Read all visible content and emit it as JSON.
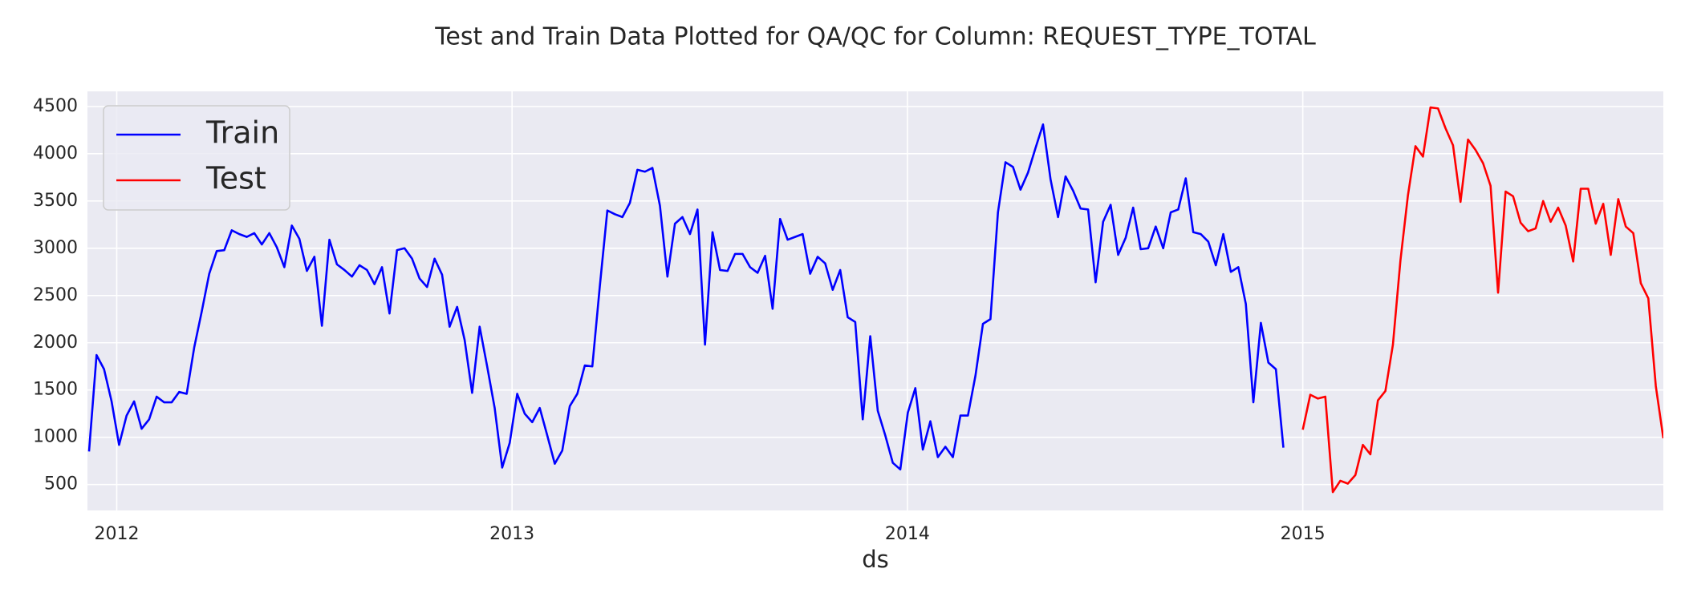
{
  "chart_data": {
    "type": "line",
    "title": "Test and Train Data Plotted for QA/QC for Column: REQUEST_TYPE_TOTAL",
    "x_label": "ds",
    "xlim": [
      2011.926,
      2015.912
    ],
    "xticks": [
      2012,
      2013,
      2014,
      2015
    ],
    "ylim": [
      226,
      4660
    ],
    "yticks": [
      500,
      1000,
      1500,
      2000,
      2500,
      3000,
      3500,
      4000,
      4500
    ],
    "grid": true,
    "legend": "upper left",
    "series": [
      {
        "name": "Train",
        "color": "#0000ff",
        "x": [
          2011.93,
          2011.949,
          2011.968,
          2011.987,
          2012.006,
          2012.025,
          2012.044,
          2012.063,
          2012.082,
          2012.101,
          2012.12,
          2012.139,
          2012.158,
          2012.177,
          2012.196,
          2012.215,
          2012.234,
          2012.253,
          2012.272,
          2012.291,
          2012.31,
          2012.329,
          2012.348,
          2012.367,
          2012.386,
          2012.405,
          2012.424,
          2012.443,
          2012.462,
          2012.481,
          2012.5,
          2012.519,
          2012.538,
          2012.557,
          2012.576,
          2012.595,
          2012.614,
          2012.633,
          2012.652,
          2012.671,
          2012.69,
          2012.709,
          2012.728,
          2012.747,
          2012.766,
          2012.785,
          2012.804,
          2012.823,
          2012.842,
          2012.861,
          2012.88,
          2012.899,
          2012.918,
          2012.937,
          2012.956,
          2012.975,
          2012.994,
          2013.013,
          2013.032,
          2013.051,
          2013.07,
          2013.089,
          2013.108,
          2013.127,
          2013.146,
          2013.165,
          2013.184,
          2013.203,
          2013.222,
          2013.241,
          2013.26,
          2013.279,
          2013.298,
          2013.317,
          2013.336,
          2013.355,
          2013.374,
          2013.393,
          2013.412,
          2013.431,
          2013.45,
          2013.469,
          2013.488,
          2013.507,
          2013.526,
          2013.545,
          2013.564,
          2013.583,
          2013.602,
          2013.621,
          2013.64,
          2013.659,
          2013.678,
          2013.697,
          2013.716,
          2013.735,
          2013.754,
          2013.773,
          2013.792,
          2013.811,
          2013.83,
          2013.849,
          2013.868,
          2013.887,
          2013.906,
          2013.925,
          2013.944,
          2013.963,
          2013.982,
          2014.001,
          2014.02,
          2014.039,
          2014.058,
          2014.077,
          2014.096,
          2014.115,
          2014.134,
          2014.153,
          2014.172,
          2014.191,
          2014.21,
          2014.229,
          2014.248,
          2014.267,
          2014.286,
          2014.305,
          2014.324,
          2014.343,
          2014.362,
          2014.381,
          2014.4,
          2014.419,
          2014.438,
          2014.457,
          2014.476,
          2014.495,
          2014.514,
          2014.533,
          2014.552,
          2014.571,
          2014.59,
          2014.609,
          2014.628,
          2014.647,
          2014.666,
          2014.685,
          2014.704,
          2014.723,
          2014.742,
          2014.761,
          2014.78,
          2014.799,
          2014.818,
          2014.837,
          2014.856,
          2014.875,
          2014.894,
          2014.913,
          2014.932,
          2014.951
        ],
        "values": [
          850,
          1870,
          1720,
          1380,
          920,
          1230,
          1380,
          1090,
          1190,
          1430,
          1370,
          1370,
          1480,
          1460,
          1950,
          2330,
          2730,
          2970,
          2980,
          3190,
          3150,
          3120,
          3160,
          3040,
          3160,
          3010,
          2800,
          3240,
          3100,
          2760,
          2910,
          2180,
          3090,
          2830,
          2770,
          2700,
          2820,
          2770,
          2620,
          2800,
          2310,
          2980,
          3000,
          2890,
          2680,
          2590,
          2890,
          2720,
          2170,
          2380,
          2030,
          1470,
          2170,
          1750,
          1310,
          680,
          940,
          1460,
          1250,
          1160,
          1310,
          1020,
          720,
          860,
          1330,
          1460,
          1760,
          1750,
          2600,
          3400,
          3360,
          3330,
          3480,
          3830,
          3810,
          3850,
          3450,
          2700,
          3260,
          3330,
          3150,
          3410,
          1980,
          3170,
          2770,
          2760,
          2940,
          2940,
          2800,
          2740,
          2920,
          2360,
          3310,
          3090,
          3120,
          3150,
          2730,
          2910,
          2840,
          2560,
          2770,
          2270,
          2220,
          1190,
          2070,
          1280,
          1020,
          730,
          660,
          1260,
          1520,
          870,
          1170,
          790,
          900,
          790,
          1230,
          1230,
          1650,
          2200,
          2250,
          3380,
          3910,
          3860,
          3620,
          3800,
          4060,
          4310,
          3730,
          3330,
          3760,
          3610,
          3420,
          3410,
          2640,
          3280,
          3460,
          2930,
          3110,
          3430,
          2990,
          3000,
          3230,
          3000,
          3380,
          3410,
          3740,
          3170,
          3150,
          3070,
          2820,
          3150,
          2750,
          2800,
          2410,
          1370,
          2210,
          1790,
          1720,
          890
        ]
      },
      {
        "name": "Test",
        "color": "#ff0000",
        "x": [
          2015,
          2015.019,
          2015.038,
          2015.057,
          2015.076,
          2015.095,
          2015.114,
          2015.133,
          2015.152,
          2015.171,
          2015.19,
          2015.209,
          2015.228,
          2015.247,
          2015.266,
          2015.285,
          2015.304,
          2015.323,
          2015.342,
          2015.361,
          2015.38,
          2015.399,
          2015.418,
          2015.437,
          2015.456,
          2015.475,
          2015.494,
          2015.513,
          2015.532,
          2015.551,
          2015.57,
          2015.589,
          2015.608,
          2015.627,
          2015.646,
          2015.665,
          2015.684,
          2015.703,
          2015.722,
          2015.741,
          2015.76,
          2015.779,
          2015.798,
          2015.817,
          2015.836,
          2015.855,
          2015.874,
          2015.893,
          2015.912
        ],
        "values": [
          1080,
          1450,
          1410,
          1430,
          420,
          540,
          510,
          600,
          920,
          820,
          1390,
          1490,
          1980,
          2870,
          3560,
          4080,
          3970,
          4490,
          4480,
          4270,
          4090,
          3490,
          4150,
          4040,
          3900,
          3660,
          2530,
          3600,
          3550,
          3270,
          3180,
          3210,
          3500,
          3280,
          3430,
          3240,
          2860,
          3630,
          3630,
          3260,
          3470,
          2930,
          3520,
          3230,
          3160,
          2630,
          2470,
          1540,
          990
        ]
      }
    ]
  }
}
